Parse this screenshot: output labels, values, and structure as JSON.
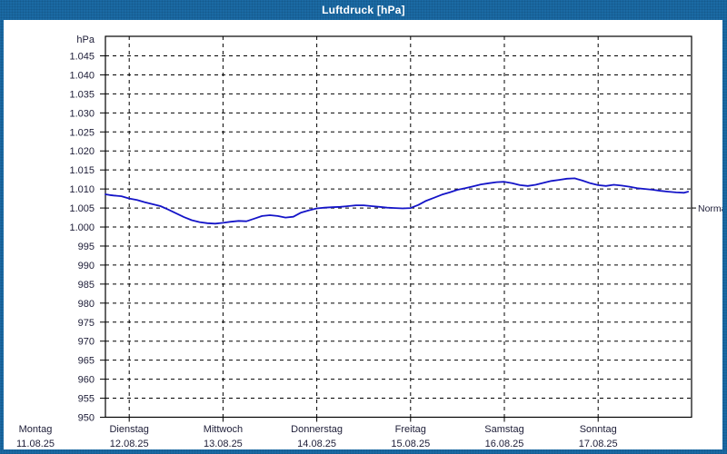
{
  "window": {
    "title": "Luftdruck [hPa]"
  },
  "colors": {
    "chrome_blue": "#1b6aa4",
    "chrome_blue_dot": "#155a8e",
    "line_blue": "#1414c8",
    "grid_black": "#000000",
    "label_text": "#20203a",
    "plot_background": "#ffffff",
    "title_text": "#ffffff"
  },
  "chart_data": {
    "type": "line",
    "title": "Luftdruck [hPa]",
    "y_axis": {
      "unit_label": "hPa",
      "min": 950,
      "max": 1050,
      "tick_step": 5,
      "tick_values": [
        1045,
        1040,
        1035,
        1030,
        1025,
        1020,
        1015,
        1010,
        1005,
        1000,
        995,
        990,
        985,
        980,
        975,
        970,
        965,
        960,
        955,
        950
      ],
      "tick_labels": [
        "1.045",
        "1.040",
        "1.035",
        "1.030",
        "1.025",
        "1.020",
        "1.015",
        "1.010",
        "1.005",
        "1.000",
        "995",
        "990",
        "985",
        "980",
        "975",
        "970",
        "965",
        "960",
        "955",
        "950"
      ],
      "grid": "dashed"
    },
    "x_axis": {
      "days": [
        {
          "name": "Montag",
          "date": "11.08.25"
        },
        {
          "name": "Dienstag",
          "date": "12.08.25"
        },
        {
          "name": "Mittwoch",
          "date": "13.08.25"
        },
        {
          "name": "Donnerstag",
          "date": "14.08.25"
        },
        {
          "name": "Freitag",
          "date": "15.08.25"
        },
        {
          "name": "Samstag",
          "date": "16.08.25"
        },
        {
          "name": "Sonntag",
          "date": "17.08.25"
        }
      ],
      "grid": "dashed"
    },
    "normal_marker": {
      "label": "Normal",
      "value_hpa": 1005
    },
    "series": [
      {
        "name": "Luftdruck",
        "unit": "hPa",
        "points_hours_vs_hpa": [
          [
            17.9,
            1008.6
          ],
          [
            19,
            1008.4
          ],
          [
            20,
            1008.3
          ],
          [
            22,
            1008.1
          ],
          [
            24,
            1007.5
          ],
          [
            26,
            1007.1
          ],
          [
            28,
            1006.5
          ],
          [
            30,
            1006.0
          ],
          [
            32,
            1005.5
          ],
          [
            34,
            1004.6
          ],
          [
            36,
            1003.6
          ],
          [
            38,
            1002.6
          ],
          [
            40,
            1001.8
          ],
          [
            42,
            1001.3
          ],
          [
            44,
            1001.0
          ],
          [
            46,
            1000.9
          ],
          [
            48,
            1001.1
          ],
          [
            50,
            1001.4
          ],
          [
            52,
            1001.6
          ],
          [
            54,
            1001.5
          ],
          [
            56,
            1002.2
          ],
          [
            58,
            1002.9
          ],
          [
            60,
            1003.1
          ],
          [
            62,
            1002.9
          ],
          [
            64,
            1002.5
          ],
          [
            66,
            1002.7
          ],
          [
            68,
            1003.8
          ],
          [
            70,
            1004.4
          ],
          [
            72,
            1004.9
          ],
          [
            74,
            1005.1
          ],
          [
            76,
            1005.2
          ],
          [
            78,
            1005.3
          ],
          [
            80,
            1005.5
          ],
          [
            82,
            1005.7
          ],
          [
            84,
            1005.7
          ],
          [
            86,
            1005.5
          ],
          [
            88,
            1005.3
          ],
          [
            90,
            1005.1
          ],
          [
            92,
            1005.0
          ],
          [
            94,
            1004.9
          ],
          [
            96,
            1005.0
          ],
          [
            98,
            1005.8
          ],
          [
            100,
            1006.9
          ],
          [
            102,
            1007.7
          ],
          [
            104,
            1008.5
          ],
          [
            106,
            1009.1
          ],
          [
            108,
            1009.8
          ],
          [
            110,
            1010.2
          ],
          [
            112,
            1010.7
          ],
          [
            114,
            1011.2
          ],
          [
            116,
            1011.5
          ],
          [
            118,
            1011.8
          ],
          [
            120,
            1011.9
          ],
          [
            122,
            1011.5
          ],
          [
            124,
            1011.0
          ],
          [
            126,
            1010.8
          ],
          [
            128,
            1011.1
          ],
          [
            130,
            1011.6
          ],
          [
            132,
            1012.1
          ],
          [
            134,
            1012.4
          ],
          [
            136,
            1012.7
          ],
          [
            138,
            1012.8
          ],
          [
            140,
            1012.2
          ],
          [
            142,
            1011.5
          ],
          [
            144,
            1011.0
          ],
          [
            146,
            1010.8
          ],
          [
            148,
            1011.1
          ],
          [
            150,
            1010.9
          ],
          [
            152,
            1010.6
          ],
          [
            154,
            1010.2
          ],
          [
            156,
            1010.0
          ],
          [
            158,
            1009.8
          ],
          [
            160,
            1009.5
          ],
          [
            162,
            1009.3
          ],
          [
            164,
            1009.1
          ],
          [
            166,
            1009.0
          ],
          [
            167,
            1009.3
          ]
        ]
      }
    ]
  }
}
